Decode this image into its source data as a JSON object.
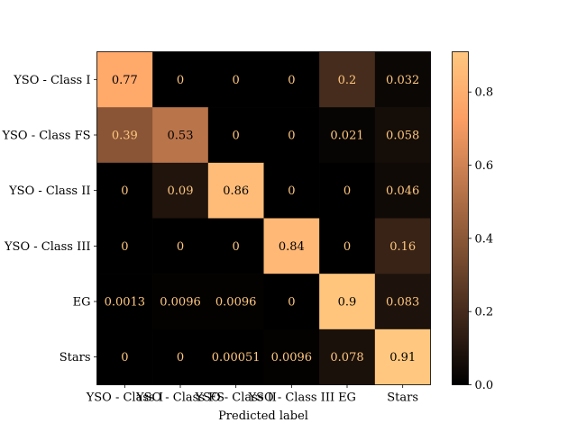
{
  "chart_data": {
    "type": "heatmap",
    "title": "",
    "xlabel": "Predicted label",
    "ylabel": "",
    "x_categories": [
      "YSO - Class I",
      "YSO - Class FS",
      "YSO - Class II",
      "YSO - Class III",
      "EG",
      "Stars"
    ],
    "y_categories": [
      "YSO - Class I",
      "YSO - Class FS",
      "YSO - Class II",
      "YSO - Class III",
      "EG",
      "Stars"
    ],
    "values": [
      [
        0.77,
        0,
        0,
        0,
        0.2,
        0.032
      ],
      [
        0.39,
        0.53,
        0,
        0,
        0.021,
        0.058
      ],
      [
        0,
        0.09,
        0.86,
        0,
        0,
        0.046
      ],
      [
        0,
        0,
        0,
        0.84,
        0,
        0.16
      ],
      [
        0.0013,
        0.0096,
        0.0096,
        0,
        0.9,
        0.083
      ],
      [
        0,
        0,
        0.00051,
        0.0096,
        0.078,
        0.91
      ]
    ],
    "cell_labels": [
      [
        "0.77",
        "0",
        "0",
        "0",
        "0.2",
        "0.032"
      ],
      [
        "0.39",
        "0.53",
        "0",
        "0",
        "0.021",
        "0.058"
      ],
      [
        "0",
        "0.09",
        "0.86",
        "0",
        "0",
        "0.046"
      ],
      [
        "0",
        "0",
        "0",
        "0.84",
        "0",
        "0.16"
      ],
      [
        "0.0013",
        "0.0096",
        "0.0096",
        "0",
        "0.9",
        "0.083"
      ],
      [
        "0",
        "0",
        "0.00051",
        "0.0096",
        "0.078",
        "0.91"
      ]
    ],
    "colormap": "copper",
    "colorbar": {
      "vmin": 0,
      "vmax": 0.91,
      "ticks": [
        0.0,
        0.2,
        0.4,
        0.6,
        0.8
      ],
      "tick_labels": [
        "0.0",
        "0.2",
        "0.4",
        "0.6",
        "0.8"
      ]
    },
    "colors": {
      "high_text": "#000000",
      "low_text": "#ffc77f",
      "axis": "#000000"
    },
    "grid": false
  }
}
